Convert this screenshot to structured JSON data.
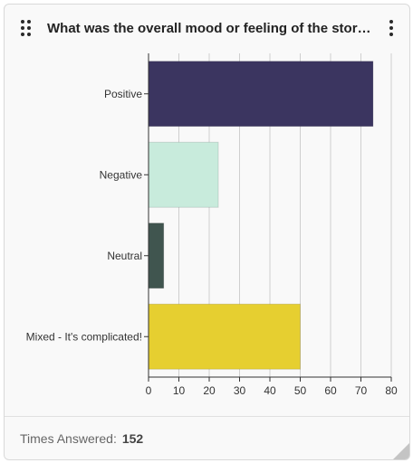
{
  "header": {
    "title": "What was the overall mood or feeling of the story?",
    "drag_icon": "drag-handle-icon",
    "menu_icon": "more-vertical-icon"
  },
  "footer": {
    "label": "Times Answered:",
    "count": "152"
  },
  "chart_data": {
    "type": "bar",
    "orientation": "horizontal",
    "categories": [
      "Positive",
      "Negative",
      "Neutral",
      "Mixed - It's complicated!"
    ],
    "values": [
      74,
      23,
      5,
      50
    ],
    "colors": [
      "#3b3560",
      "#c8ebdc",
      "#40554f",
      "#e6cf30"
    ],
    "xlim": [
      0,
      80
    ],
    "xticks": [
      0,
      10,
      20,
      30,
      40,
      50,
      60,
      70,
      80
    ],
    "grid": true,
    "title": "",
    "xlabel": "",
    "ylabel": ""
  }
}
